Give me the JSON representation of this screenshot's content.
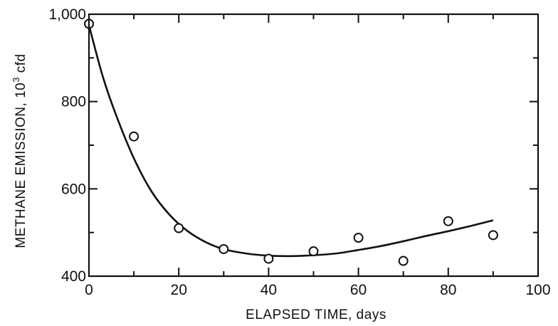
{
  "chart_data": {
    "type": "scatter",
    "title": "",
    "xlabel": "ELAPSED TIME, days",
    "ylabel_main": "METHANE EMISSION, 10",
    "ylabel_sup": "3",
    "ylabel_unit": " cfd",
    "xlim": [
      0,
      100
    ],
    "ylim": [
      400,
      1000
    ],
    "x_ticks": [
      0,
      20,
      40,
      60,
      80,
      100
    ],
    "x_tick_labels": [
      "0",
      "20",
      "40",
      "60",
      "80",
      "100"
    ],
    "y_ticks": [
      400,
      600,
      800,
      1000
    ],
    "y_tick_labels": [
      "400",
      "600",
      "800",
      "1,000"
    ],
    "grid": false,
    "series": [
      {
        "type": "scatter",
        "marker": "open-circle",
        "x": [
          0,
          10,
          20,
          30,
          40,
          50,
          60,
          70,
          80,
          90
        ],
        "y": [
          978,
          720,
          510,
          462,
          440,
          457,
          488,
          435,
          526,
          494
        ]
      },
      {
        "type": "line",
        "style": "smooth-fit",
        "x": [
          0,
          3,
          6,
          10,
          14,
          18,
          22,
          26,
          30,
          35,
          40,
          45,
          50,
          55,
          60,
          65,
          70,
          75,
          80,
          85,
          90
        ],
        "y": [
          975,
          860,
          770,
          670,
          593,
          540,
          503,
          478,
          462,
          452,
          447,
          446,
          448,
          452,
          460,
          469,
          480,
          492,
          503,
          515,
          528
        ]
      }
    ]
  }
}
